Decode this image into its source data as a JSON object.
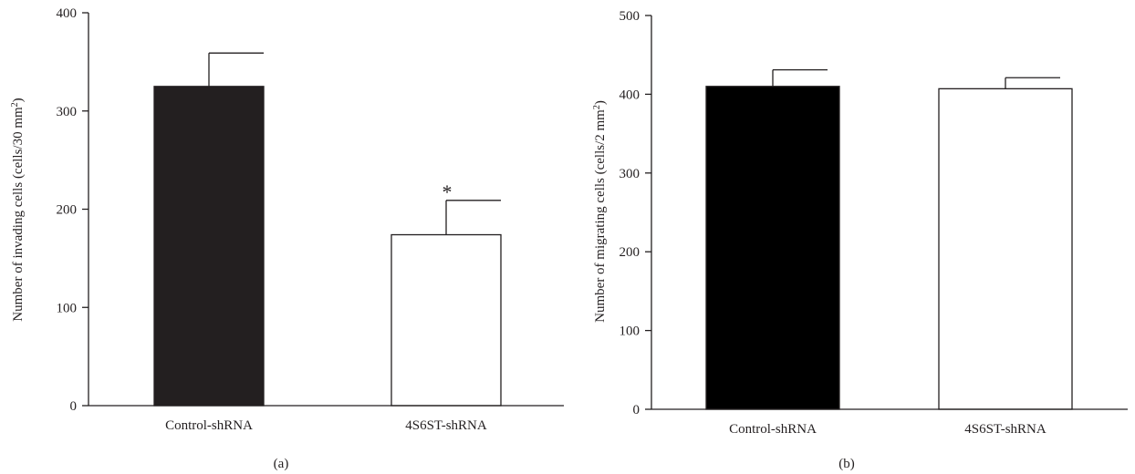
{
  "chart_data": [
    {
      "type": "bar",
      "panel_label": "(a)",
      "categories": [
        "Control-shRNA",
        "4S6ST-shRNA"
      ],
      "values": [
        325,
        174
      ],
      "errors": [
        34,
        35
      ],
      "bar_colors": [
        "#231f20",
        "#ffffff"
      ],
      "annotations": [
        "",
        "*"
      ],
      "ylabel": "Number of invading cells (cells/30 mm",
      "ylabel_sup": "2",
      "ylabel_end": ")",
      "ylim": [
        0,
        400
      ],
      "yticks": [
        "0",
        "100",
        "200",
        "300",
        "400"
      ],
      "grid": false
    },
    {
      "type": "bar",
      "panel_label": "(b)",
      "categories": [
        "Control-shRNA",
        "4S6ST-shRNA"
      ],
      "values": [
        410,
        407
      ],
      "errors": [
        21,
        14
      ],
      "bar_colors": [
        "#000000",
        "#ffffff"
      ],
      "annotations": [
        "",
        ""
      ],
      "ylabel": "Number of migrating cells (cells/2 mm",
      "ylabel_sup": "2",
      "ylabel_end": ")",
      "ylim": [
        0,
        500
      ],
      "yticks": [
        "0",
        "100",
        "200",
        "300",
        "400",
        "500"
      ],
      "grid": false
    }
  ]
}
